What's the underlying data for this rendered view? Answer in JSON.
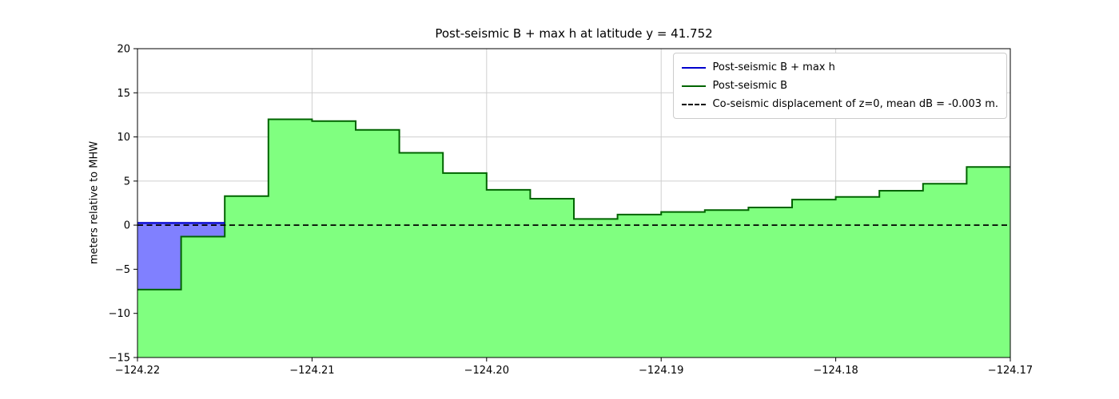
{
  "chart_data": {
    "type": "area",
    "title": "Post-seismic B + max h at latitude y = 41.752",
    "ylabel": "meters relative to MHW",
    "xlim": [
      -124.22,
      -124.17
    ],
    "ylim": [
      -15,
      20
    ],
    "grid": true,
    "x_ticks": [
      -124.22,
      -124.21,
      -124.2,
      -124.19,
      -124.18,
      -124.17
    ],
    "x_tick_labels": [
      "−124.22",
      "−124.21",
      "−124.20",
      "−124.19",
      "−124.18",
      "−124.17"
    ],
    "y_ticks": [
      -15,
      -10,
      -5,
      0,
      5,
      10,
      15,
      20
    ],
    "y_tick_labels": [
      "−15",
      "−10",
      "−5",
      "0",
      "5",
      "10",
      "15",
      "20"
    ],
    "series": [
      {
        "id": "eta",
        "type": "step_fill",
        "line_color": "#0000cd",
        "fill_color": "#8080ff",
        "x_edges": [
          -124.22,
          -124.2175,
          -124.215
        ],
        "values": [
          0.25,
          0.25
        ]
      },
      {
        "id": "B",
        "type": "step_fill",
        "line_color": "#006400",
        "fill_color": "#80ff80",
        "x_edges": [
          -124.22,
          -124.2175,
          -124.215,
          -124.2125,
          -124.21,
          -124.2075,
          -124.205,
          -124.2025,
          -124.2,
          -124.1975,
          -124.195,
          -124.1925,
          -124.19,
          -124.1875,
          -124.185,
          -124.1825,
          -124.18,
          -124.1775,
          -124.175,
          -124.1725,
          -124.17
        ],
        "values": [
          -7.3,
          -1.3,
          3.3,
          12.0,
          11.8,
          10.8,
          8.2,
          5.9,
          4.0,
          3.0,
          0.7,
          1.2,
          1.5,
          1.7,
          2.0,
          2.9,
          3.2,
          3.9,
          4.7,
          6.6
        ]
      },
      {
        "id": "zero",
        "type": "hline",
        "y": 0,
        "line_color": "#000000",
        "dash": true
      }
    ],
    "legend": {
      "position": "upper right",
      "entries": [
        {
          "label": "Post-seismic B + max h",
          "color": "#0000cd",
          "dash": false
        },
        {
          "label": "Post-seismic B",
          "color": "#006400",
          "dash": false
        },
        {
          "label": "Co-seismic displacement of z=0, mean dB = -0.003 m.",
          "color": "#000000",
          "dash": true
        }
      ]
    }
  }
}
